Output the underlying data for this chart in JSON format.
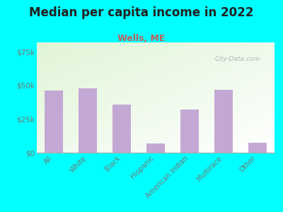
{
  "title": "Median per capita income in 2022",
  "subtitle": "Wells, ME",
  "categories": [
    "All",
    "White",
    "Black",
    "Hispanic",
    "American Indian",
    "Multirace",
    "Other"
  ],
  "values": [
    46000,
    48000,
    36000,
    7000,
    32000,
    47000,
    7500
  ],
  "bar_color": "#c4a8d4",
  "title_fontsize": 12,
  "title_fontweight": "bold",
  "subtitle_fontsize": 9,
  "subtitle_color": "#c0605a",
  "background_outer": "#00FFFF",
  "ylim": [
    0,
    82000
  ],
  "yticks": [
    0,
    25000,
    50000,
    75000
  ],
  "ytick_labels": [
    "$0",
    "$25k",
    "$50k",
    "$75k"
  ],
  "watermark": "City-Data.com",
  "tick_color": "#777777",
  "tick_fontsize": 7.5,
  "xtick_fontsize": 7
}
